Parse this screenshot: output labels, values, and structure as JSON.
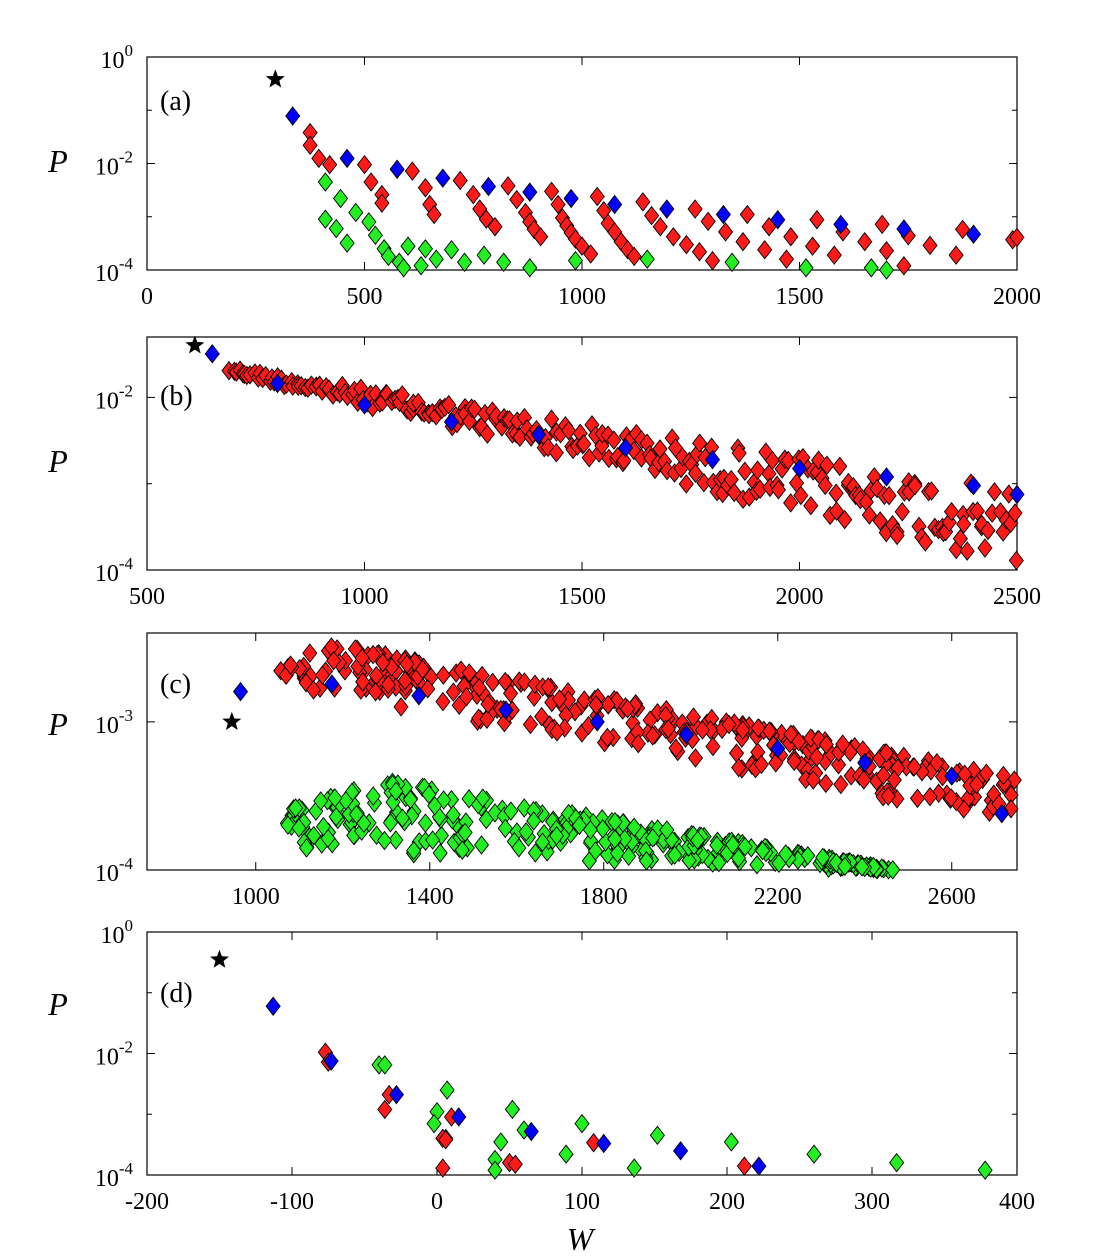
{
  "figure": {
    "x_axis_label": "W",
    "y_axis_label": "P",
    "colors": {
      "blue": "#0000ff",
      "red": "#ff1a1a",
      "green": "#22ee22",
      "star": "#000000",
      "frame": "#000000"
    }
  },
  "chart_data": [
    {
      "panel": "(a)",
      "type": "scatter",
      "xlim": [
        0,
        2000
      ],
      "ylim_exp": [
        -4,
        0
      ],
      "y_log": true,
      "xticks": [
        0,
        500,
        1000,
        1500,
        2000
      ],
      "xtick_labels": [
        "0",
        "500",
        "1000",
        "1500",
        "2000"
      ],
      "yticks_exp": [
        -4,
        -2,
        0
      ],
      "ytick_base": "10",
      "ytick_exponents": [
        "-4",
        "-2",
        "0"
      ],
      "star": [
        [
          295,
          0.38
        ]
      ],
      "series": [
        {
          "name": "blue",
          "points": [
            [
              335,
              0.078
            ],
            [
              460,
              0.0125
            ],
            [
              575,
              0.0078
            ],
            [
              680,
              0.0053
            ],
            [
              785,
              0.0037
            ],
            [
              880,
              0.0029
            ],
            [
              975,
              0.0022
            ],
            [
              1075,
              0.0017
            ],
            [
              1195,
              0.0014
            ],
            [
              1325,
              0.0011
            ],
            [
              1450,
              0.00088
            ],
            [
              1595,
              0.00072
            ],
            [
              1740,
              0.00059
            ],
            [
              1900,
              0.00047
            ]
          ]
        },
        {
          "name": "red",
          "points": [
            [
              375,
              0.038
            ],
            [
              375,
              0.022
            ],
            [
              395,
              0.0125
            ],
            [
              420,
              0.0095
            ],
            [
              500,
              0.0095
            ],
            [
              515,
              0.0045
            ],
            [
              540,
              0.0026
            ],
            [
              540,
              0.0018
            ],
            [
              610,
              0.0072
            ],
            [
              640,
              0.0035
            ],
            [
              650,
              0.0017
            ],
            [
              660,
              0.0011
            ],
            [
              720,
              0.0048
            ],
            [
              750,
              0.0026
            ],
            [
              765,
              0.0014
            ],
            [
              780,
              0.0009
            ],
            [
              800,
              0.00065
            ],
            [
              830,
              0.0038
            ],
            [
              850,
              0.0021
            ],
            [
              870,
              0.0012
            ],
            [
              880,
              0.0008
            ],
            [
              890,
              0.00058
            ],
            [
              905,
              0.00042
            ],
            [
              930,
              0.003
            ],
            [
              945,
              0.0017
            ],
            [
              955,
              0.00095
            ],
            [
              965,
              0.00068
            ],
            [
              975,
              0.0005
            ],
            [
              985,
              0.00038
            ],
            [
              1000,
              0.00028
            ],
            [
              1020,
              0.0002
            ],
            [
              1035,
              0.0024
            ],
            [
              1050,
              0.0013
            ],
            [
              1060,
              0.00075
            ],
            [
              1075,
              0.00052
            ],
            [
              1090,
              0.00034
            ],
            [
              1105,
              0.00024
            ],
            [
              1120,
              0.00018
            ],
            [
              1140,
              0.0019
            ],
            [
              1160,
              0.00105
            ],
            [
              1180,
              0.00065
            ],
            [
              1210,
              0.00042
            ],
            [
              1240,
              0.0003
            ],
            [
              1270,
              0.00022
            ],
            [
              1300,
              0.00015
            ],
            [
              1260,
              0.0014
            ],
            [
              1290,
              0.00082
            ],
            [
              1330,
              0.00052
            ],
            [
              1370,
              0.00034
            ],
            [
              1420,
              0.00024
            ],
            [
              1470,
              0.00016
            ],
            [
              1380,
              0.0011
            ],
            [
              1430,
              0.00065
            ],
            [
              1480,
              0.00042
            ],
            [
              1530,
              0.00028
            ],
            [
              1580,
              0.00019
            ],
            [
              1540,
              0.00088
            ],
            [
              1600,
              0.00052
            ],
            [
              1650,
              0.00034
            ],
            [
              1700,
              0.00023
            ],
            [
              1740,
              0.00012
            ],
            [
              1690,
              0.00072
            ],
            [
              1750,
              0.00044
            ],
            [
              1800,
              0.00029
            ],
            [
              1860,
              0.00019
            ],
            [
              1875,
              0.00058
            ],
            [
              1990,
              0.00037
            ],
            [
              2000,
              0.00041
            ]
          ]
        },
        {
          "name": "green",
          "points": [
            [
              410,
              0.0045
            ],
            [
              410,
              0.0009
            ],
            [
              435,
              0.0006
            ],
            [
              445,
              0.0022
            ],
            [
              460,
              0.00032
            ],
            [
              480,
              0.0012
            ],
            [
              510,
              0.0008
            ],
            [
              525,
              0.00045
            ],
            [
              545,
              0.00025
            ],
            [
              555,
              0.00018
            ],
            [
              580,
              0.00014
            ],
            [
              590,
              0.00011
            ],
            [
              600,
              0.00028
            ],
            [
              630,
              0.00012
            ],
            [
              640,
              0.00025
            ],
            [
              665,
              0.00016
            ],
            [
              700,
              0.00024
            ],
            [
              730,
              0.00014
            ],
            [
              775,
              0.00019
            ],
            [
              820,
              0.00014
            ],
            [
              880,
              0.00011
            ],
            [
              985,
              0.00015
            ],
            [
              1150,
              0.00016
            ],
            [
              1345,
              0.00014
            ],
            [
              1515,
              0.00011
            ],
            [
              1665,
              0.00011
            ],
            [
              1700,
              0.0001
            ]
          ]
        }
      ]
    },
    {
      "panel": "(b)",
      "type": "scatter",
      "xlim": [
        500,
        2500
      ],
      "ylim_exp": [
        -4,
        -1.3
      ],
      "y_log": true,
      "xticks": [
        500,
        1000,
        1500,
        2000,
        2500
      ],
      "xtick_labels": [
        "500",
        "1000",
        "1500",
        "2000",
        "2500"
      ],
      "yticks_exp": [
        -4,
        -2
      ],
      "ytick_base": "10",
      "ytick_exponents": [
        "-4",
        "-2"
      ],
      "star": [
        [
          610,
          0.04
        ]
      ],
      "series": [
        {
          "name": "blue",
          "points": [
            [
              650,
              0.032
            ],
            [
              800,
              0.0145
            ],
            [
              1000,
              0.0082
            ],
            [
              1200,
              0.0052
            ],
            [
              1400,
              0.0037
            ],
            [
              1600,
              0.0026
            ],
            [
              1800,
              0.0019
            ],
            [
              2000,
              0.0015
            ],
            [
              2200,
              0.0012
            ],
            [
              2400,
              0.00095
            ],
            [
              2500,
              0.00075
            ]
          ]
        },
        {
          "name": "red",
          "generator": "band",
          "x_from": 690,
          "x_to": 2500,
          "p_upper_at_from": 0.022,
          "p_upper_at_to": 0.00085,
          "p_lower_at_to": 0.00012
        }
      ]
    },
    {
      "panel": "(c)",
      "type": "scatter",
      "xlim": [
        750,
        2750
      ],
      "ylim_exp": [
        -4,
        -2.4
      ],
      "y_log": true,
      "xticks": [
        1000,
        1400,
        1800,
        2200,
        2600
      ],
      "xtick_labels": [
        "1000",
        "1400",
        "1800",
        "2200",
        "2600"
      ],
      "yticks_exp": [
        -4,
        -3
      ],
      "ytick_base": "10",
      "ytick_exponents": [
        "-4",
        "-3"
      ],
      "star": [
        [
          945,
          0.001
        ]
      ],
      "series": [
        {
          "name": "blue",
          "points": [
            [
              965,
              0.0016
            ],
            [
              1175,
              0.0018
            ],
            [
              1375,
              0.0015
            ],
            [
              1575,
              0.0012
            ],
            [
              1785,
              0.001
            ],
            [
              1990,
              0.00082
            ],
            [
              2200,
              0.00066
            ],
            [
              2400,
              0.00053
            ],
            [
              2600,
              0.00043
            ],
            [
              2715,
              0.00024
            ]
          ]
        },
        {
          "name": "red",
          "generator": "hump",
          "x_from": 1050,
          "x_to": 2745,
          "peak_x": 1160,
          "peak_p": 0.0034,
          "end_p": 0.00042,
          "lower_start_p": 0.0018,
          "lower_end_p": 0.00021
        },
        {
          "name": "green",
          "generator": "hump",
          "x_from": 1070,
          "x_to": 2470,
          "peak_x": 1300,
          "peak_p": 0.0004,
          "end_p": 0.0001,
          "lower_start_p": 0.00013,
          "lower_end_p": 0.0001
        }
      ]
    },
    {
      "panel": "(d)",
      "type": "scatter",
      "xlim": [
        -200,
        400
      ],
      "ylim_exp": [
        -4,
        0
      ],
      "y_log": true,
      "xticks": [
        -200,
        -100,
        0,
        100,
        200,
        300,
        400
      ],
      "xtick_labels": [
        "-200",
        "-100",
        "0",
        "100",
        "200",
        "300",
        "400"
      ],
      "yticks_exp": [
        -4,
        -2,
        0
      ],
      "ytick_base": "10",
      "ytick_exponents": [
        "-4",
        "-2",
        "0"
      ],
      "star": [
        [
          -150,
          0.35
        ]
      ],
      "series": [
        {
          "name": "blue",
          "points": [
            [
              -113,
              0.06
            ],
            [
              -73,
              0.0075
            ],
            [
              -28,
              0.0021
            ],
            [
              15,
              0.0009
            ],
            [
              65,
              0.00052
            ],
            [
              115,
              0.00033
            ],
            [
              168,
              0.00025
            ],
            [
              222,
              0.00014
            ]
          ]
        },
        {
          "name": "red",
          "points": [
            [
              -77,
              0.0105
            ],
            [
              -75,
              0.0072
            ],
            [
              -33,
              0.0021
            ],
            [
              -36,
              0.0012
            ],
            [
              4,
              0.0004
            ],
            [
              10,
              0.0009
            ],
            [
              6,
              0.00038
            ],
            [
              4,
              0.00013
            ],
            [
              50,
              0.00016
            ],
            [
              54,
              0.00015
            ],
            [
              108,
              0.00034
            ],
            [
              212,
              0.00014
            ]
          ]
        },
        {
          "name": "green",
          "points": [
            [
              -40,
              0.0065
            ],
            [
              -36,
              0.0065
            ],
            [
              7,
              0.0025
            ],
            [
              0,
              0.0011
            ],
            [
              -2,
              0.0007
            ],
            [
              6,
              0.0004
            ],
            [
              44,
              0.00035
            ],
            [
              52,
              0.0012
            ],
            [
              40,
              0.00018
            ],
            [
              40,
              0.00012
            ],
            [
              60,
              0.00055
            ],
            [
              89,
              0.00022
            ],
            [
              100,
              0.0007
            ],
            [
              136,
              0.00013
            ],
            [
              152,
              0.00045
            ],
            [
              203,
              0.00035
            ],
            [
              260,
              0.00022
            ],
            [
              317,
              0.00016
            ],
            [
              378,
              0.00012
            ]
          ]
        }
      ]
    }
  ]
}
